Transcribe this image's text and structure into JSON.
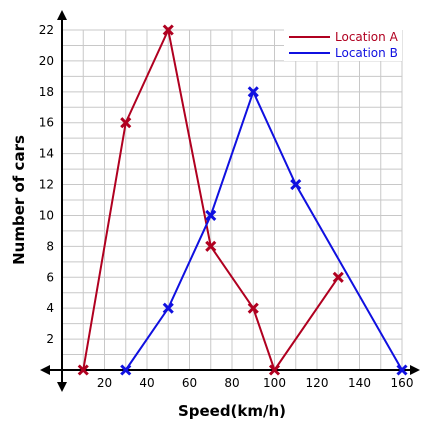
{
  "chart_data": {
    "type": "line",
    "title": "",
    "xlabel": "Speed(km/h)",
    "ylabel": "Number of cars",
    "xlim": [
      0,
      160
    ],
    "ylim": [
      0,
      22
    ],
    "xticks": [
      20,
      40,
      60,
      80,
      100,
      120,
      140,
      160
    ],
    "yticks": [
      2,
      4,
      6,
      8,
      10,
      12,
      14,
      16,
      18,
      20,
      22
    ],
    "grid": true,
    "legend_position": "top-right",
    "series": [
      {
        "name": "Location A",
        "color": "#b00020",
        "marker": "x",
        "x": [
          10,
          30,
          50,
          70,
          90,
          100,
          130
        ],
        "y": [
          0,
          16,
          22,
          8,
          4,
          0,
          6
        ]
      },
      {
        "name": "Location B",
        "color": "#1010e0",
        "marker": "x",
        "x": [
          30,
          50,
          70,
          90,
          110,
          160
        ],
        "y": [
          0,
          4,
          10,
          18,
          12,
          0
        ]
      }
    ]
  }
}
